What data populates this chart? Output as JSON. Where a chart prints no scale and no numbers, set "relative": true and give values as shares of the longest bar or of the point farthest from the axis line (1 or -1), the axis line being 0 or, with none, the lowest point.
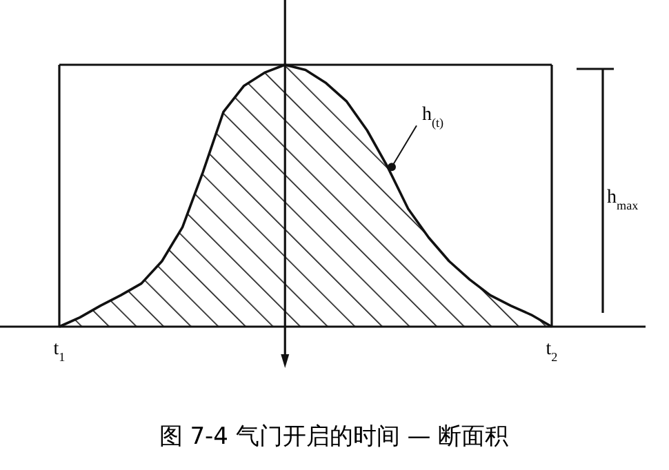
{
  "chart_data": {
    "type": "area",
    "relative": true,
    "title": "图 7-4    气门开启的时间 — 断面积",
    "categories": [
      "t$_{1}$",
      null,
      null,
      null,
      null,
      null,
      null,
      null,
      null,
      null,
      null,
      null,
      null,
      null,
      null,
      null,
      null,
      null,
      null,
      null,
      null,
      null,
      null,
      null,
      "t$_{2}$"
    ],
    "series": [
      {
        "color": "#111111",
        "values": [
          0,
          0.035,
          0.08,
          0.12,
          0.165,
          0.25,
          0.38,
          0.59,
          0.82,
          0.92,
          0.97,
          1.0,
          0.98,
          0.93,
          0.86,
          0.75,
          0.61,
          0.45,
          0.34,
          0.25,
          0.18,
          0.12,
          0.08,
          0.045,
          0
        ]
      }
    ],
    "annotations": [
      "h$_{(t)}$",
      "h$_{max}$"
    ]
  }
}
